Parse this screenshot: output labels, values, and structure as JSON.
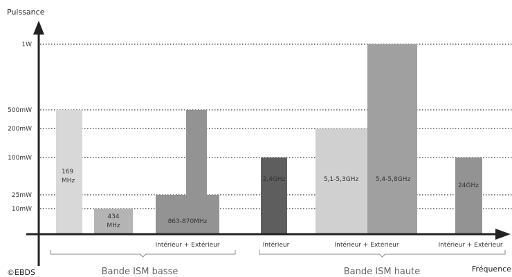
{
  "chart_data": {
    "type": "bar",
    "ylabel": "Puissance",
    "xlabel": "Fréquence",
    "copyright": "©EBDS",
    "y_levels": [
      "10mW",
      "25mW",
      "100mW",
      "200mW",
      "500mW",
      "1W"
    ],
    "bars": [
      {
        "label": "169\nMHz",
        "label_lines": [
          "169",
          "MHz"
        ],
        "value": "500mW",
        "color": "#d8d8d8"
      },
      {
        "label": "434\nMHz",
        "label_lines": [
          "434",
          "MHz"
        ],
        "value": "10mW",
        "color": "#b4b4b4"
      },
      {
        "label": "863-870MHz",
        "label_lines": [
          "863-870MHz"
        ],
        "value": "25mW",
        "color": "#939393"
      },
      {
        "label": "",
        "label_lines": [],
        "value": "500mW",
        "color": "#939393"
      },
      {
        "label": "2,4GHz",
        "label_lines": [
          "2,4GHz"
        ],
        "value": "100mW",
        "color": "#5e5e5e"
      },
      {
        "label": "5,1-5,3GHz",
        "label_lines": [
          "5,1-5,3GHz"
        ],
        "value": "200mW",
        "color": "#d0d0d0"
      },
      {
        "label": "5,4-5,8GHz",
        "label_lines": [
          "5,4-5,8GHz"
        ],
        "value": "1W",
        "color": "#a0a0a0"
      },
      {
        "label": "24GHz",
        "label_lines": [
          "24GHz"
        ],
        "value": "100mW",
        "color": "#939393"
      }
    ],
    "usage_labels": [
      "Intérieur + Extérieur",
      "Intérieur",
      "Intérieur + Extérieur",
      "Intérieur + Extérieur"
    ],
    "groups": [
      "Bande ISM basse",
      "Bande ISM haute"
    ]
  }
}
